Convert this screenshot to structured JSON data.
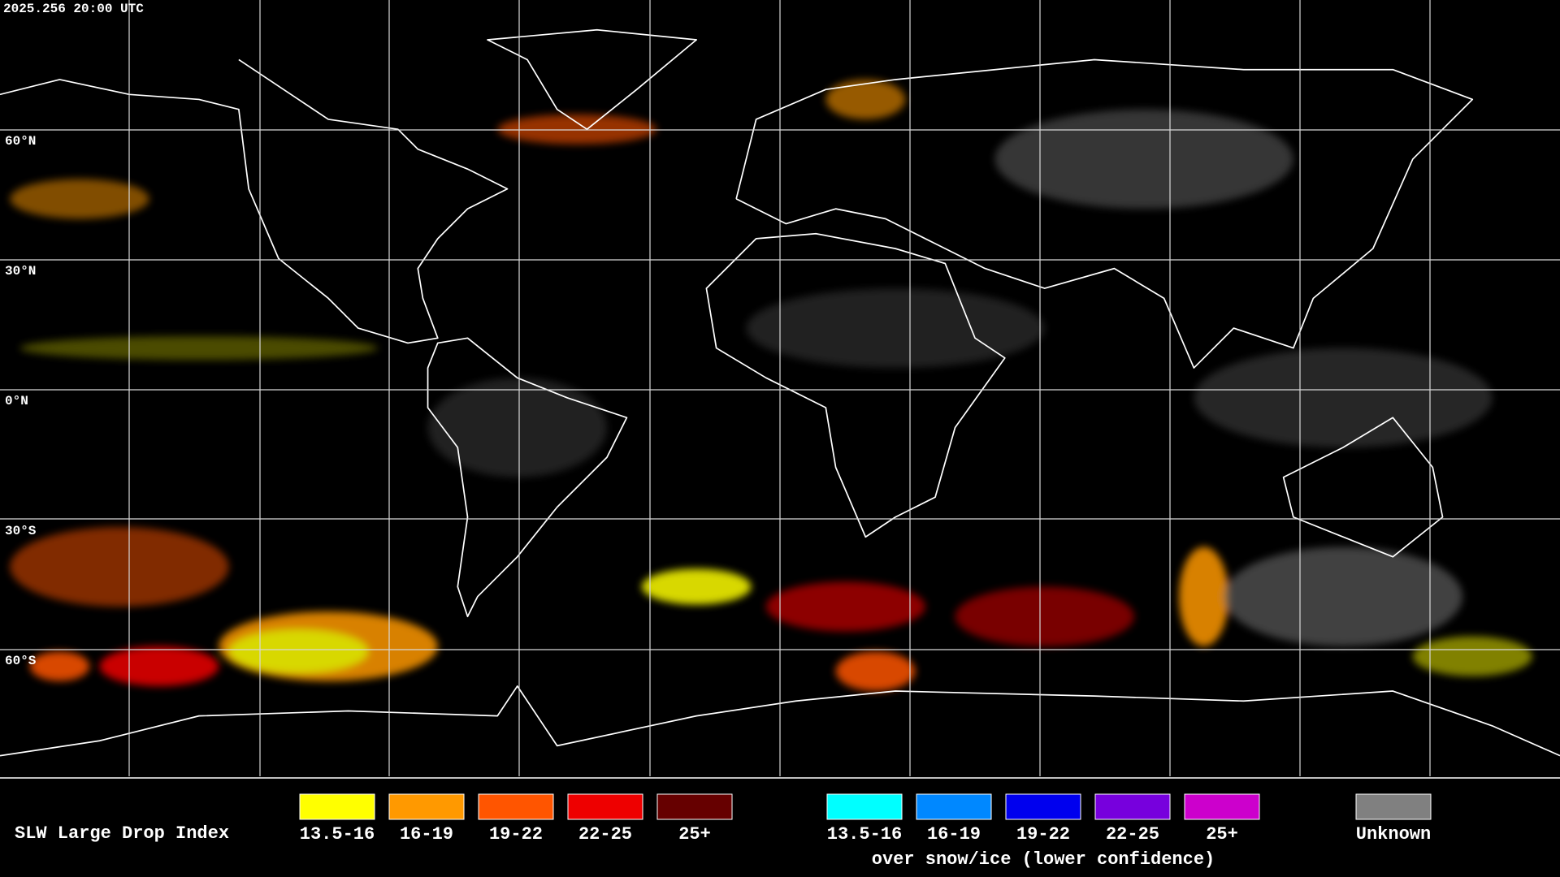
{
  "header": {
    "timestamp": "2025.256 20:00 UTC"
  },
  "map": {
    "latitude_labels": [
      "60°N",
      "30°N",
      "0°N",
      "30°S",
      "60°S"
    ]
  },
  "legend": {
    "title": "SLW Large Drop Index",
    "groups": [
      {
        "items": [
          {
            "label": "13.5-16",
            "color": "#ffff00"
          },
          {
            "label": "16-19",
            "color": "#ff9900"
          },
          {
            "label": "19-22",
            "color": "#ff5500"
          },
          {
            "label": "22-25",
            "color": "#ee0000"
          },
          {
            "label": "25+",
            "color": "#660000"
          }
        ]
      },
      {
        "items": [
          {
            "label": "13.5-16",
            "color": "#00ffff"
          },
          {
            "label": "16-19",
            "color": "#0088ff"
          },
          {
            "label": "19-22",
            "color": "#0000ee"
          },
          {
            "label": "22-25",
            "color": "#7700dd"
          },
          {
            "label": "25+",
            "color": "#cc00cc"
          }
        ],
        "caption": "over snow/ice (lower confidence)"
      }
    ],
    "unknown": {
      "label": "Unknown",
      "color": "#808080"
    }
  }
}
